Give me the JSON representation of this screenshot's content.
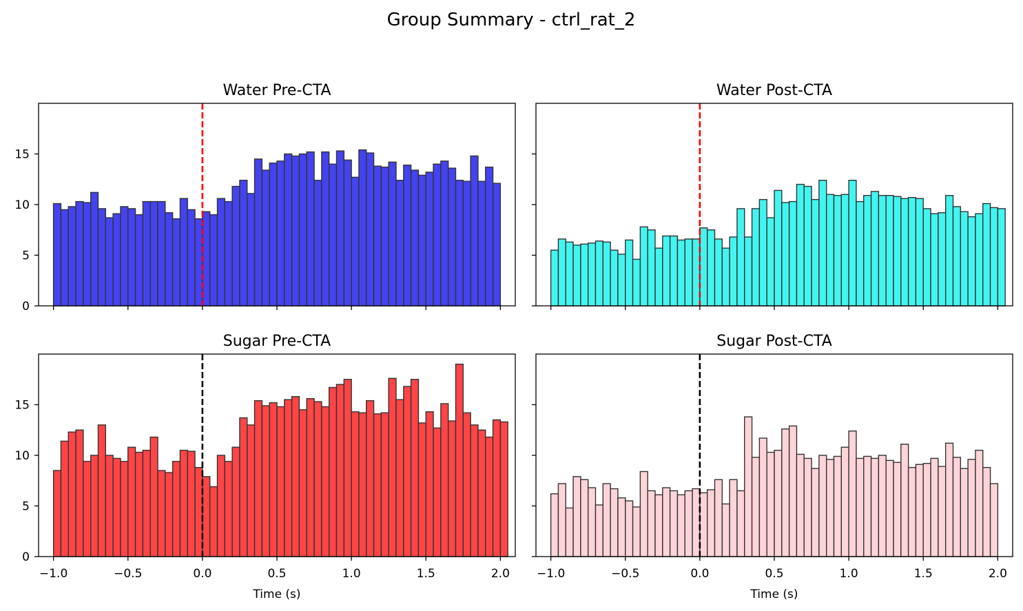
{
  "figure": {
    "title": "Group Summary - ctrl_rat_2"
  },
  "chart_data": [
    {
      "type": "bar",
      "title": "Water Pre-CTA",
      "xlabel": "",
      "ylabel": "",
      "xlim": [
        -1.1,
        2.1
      ],
      "ylim": [
        0,
        20
      ],
      "x_start": -1.0,
      "bin_width": 0.05,
      "xticks": [
        -1.0,
        -0.5,
        0.0,
        0.5,
        1.0,
        1.5,
        2.0
      ],
      "xtick_labels": [],
      "yticks": [
        0,
        5,
        10,
        15
      ],
      "ytick_labels": [
        "0",
        "5",
        "10",
        "15"
      ],
      "color": "#4343f0",
      "vline": {
        "x": 0.0,
        "color": "#ff0000"
      },
      "values": [
        10.1,
        9.5,
        9.8,
        10.3,
        10.2,
        11.2,
        9.6,
        8.7,
        9.1,
        9.8,
        9.6,
        9.0,
        10.3,
        10.3,
        10.3,
        9.2,
        8.6,
        10.6,
        9.5,
        8.6,
        9.3,
        9.0,
        10.6,
        10.3,
        11.8,
        12.4,
        11.1,
        14.5,
        13.4,
        14.1,
        14.3,
        15.0,
        14.8,
        15.0,
        15.2,
        12.4,
        15.2,
        14.0,
        15.3,
        14.4,
        12.7,
        15.4,
        15.1,
        13.8,
        13.7,
        14.2,
        12.4,
        13.9,
        13.4,
        12.9,
        13.2,
        14.0,
        14.3,
        13.6,
        12.4,
        12.3,
        14.8,
        12.3,
        13.7,
        12.1
      ]
    },
    {
      "type": "bar",
      "title": "Water Post-CTA",
      "xlabel": "",
      "ylabel": "",
      "xlim": [
        -1.1,
        2.1
      ],
      "ylim": [
        0,
        20
      ],
      "x_start": -1.0,
      "bin_width": 0.05,
      "xticks": [
        -1.0,
        -0.5,
        0.0,
        0.5,
        1.0,
        1.5,
        2.0
      ],
      "xtick_labels": [],
      "yticks": [
        0,
        5,
        10,
        15
      ],
      "ytick_labels": [],
      "color": "#43f5f0",
      "vline": {
        "x": 0.0,
        "color": "#ff0000"
      },
      "values": [
        5.5,
        6.6,
        6.3,
        6.0,
        6.1,
        6.2,
        6.4,
        6.3,
        5.5,
        5.1,
        6.5,
        4.6,
        7.8,
        7.5,
        5.7,
        6.9,
        6.9,
        6.5,
        6.6,
        6.6,
        7.7,
        7.5,
        6.6,
        5.7,
        6.8,
        9.6,
        6.8,
        9.6,
        10.5,
        8.7,
        11.4,
        10.2,
        10.3,
        12.0,
        11.8,
        10.5,
        12.4,
        11.0,
        10.9,
        11.0,
        12.4,
        10.3,
        10.9,
        11.3,
        10.9,
        10.9,
        10.8,
        10.6,
        10.7,
        10.6,
        9.6,
        9.1,
        9.2,
        10.9,
        9.8,
        9.3,
        8.8,
        9.1,
        10.1,
        9.7,
        9.6
      ]
    },
    {
      "type": "bar",
      "title": "Sugar Pre-CTA",
      "xlabel": "Time (s)",
      "ylabel": "",
      "xlim": [
        -1.1,
        2.1
      ],
      "ylim": [
        0,
        20
      ],
      "x_start": -1.0,
      "bin_width": 0.05,
      "xticks": [
        -1.0,
        -0.5,
        0.0,
        0.5,
        1.0,
        1.5,
        2.0
      ],
      "xtick_labels": [
        "−1.0",
        "−0.5",
        "0.0",
        "0.5",
        "1.0",
        "1.5",
        "2.0"
      ],
      "yticks": [
        0,
        5,
        10,
        15
      ],
      "ytick_labels": [
        "0",
        "5",
        "10",
        "15"
      ],
      "color": "#ff4545",
      "vline": {
        "x": 0.0,
        "color": "#000000"
      },
      "values": [
        8.5,
        11.4,
        12.3,
        12.5,
        9.4,
        10.0,
        13.0,
        10.0,
        9.7,
        9.4,
        10.8,
        10.3,
        10.5,
        11.8,
        8.5,
        8.3,
        9.4,
        10.5,
        10.4,
        8.8,
        7.9,
        6.9,
        10.0,
        9.4,
        10.8,
        13.7,
        13.0,
        15.4,
        14.9,
        15.2,
        14.8,
        15.5,
        15.8,
        14.5,
        15.6,
        15.3,
        14.8,
        16.7,
        17.0,
        17.5,
        14.3,
        14.2,
        15.4,
        14.1,
        14.2,
        17.6,
        15.5,
        16.8,
        17.5,
        13.2,
        14.3,
        12.7,
        15.1,
        13.4,
        19.0,
        14.2,
        13.0,
        12.5,
        11.8,
        13.5,
        13.3
      ]
    },
    {
      "type": "bar",
      "title": "Sugar Post-CTA",
      "xlabel": "Time (s)",
      "ylabel": "",
      "xlim": [
        -1.1,
        2.1
      ],
      "ylim": [
        0,
        20
      ],
      "x_start": -1.0,
      "bin_width": 0.05,
      "xticks": [
        -1.0,
        -0.5,
        0.0,
        0.5,
        1.0,
        1.5,
        2.0
      ],
      "xtick_labels": [
        "−1.0",
        "−0.5",
        "0.0",
        "0.5",
        "1.0",
        "1.5",
        "2.0"
      ],
      "yticks": [
        0,
        5,
        10,
        15
      ],
      "ytick_labels": [],
      "color": "#ffd4d8",
      "vline": {
        "x": 0.0,
        "color": "#000000"
      },
      "values": [
        6.2,
        7.2,
        4.8,
        7.9,
        7.6,
        6.8,
        5.1,
        7.2,
        6.7,
        5.8,
        5.5,
        4.9,
        8.4,
        6.5,
        6.1,
        6.8,
        6.5,
        6.1,
        6.5,
        6.7,
        6.3,
        6.6,
        7.6,
        5.2,
        7.6,
        6.5,
        13.8,
        9.8,
        11.7,
        10.3,
        10.5,
        12.6,
        12.9,
        10.1,
        9.7,
        8.7,
        10.0,
        9.6,
        9.9,
        10.8,
        12.4,
        9.7,
        9.9,
        9.7,
        10.0,
        9.5,
        9.3,
        11.1,
        8.8,
        9.1,
        9.2,
        9.7,
        8.9,
        11.2,
        9.8,
        8.7,
        9.6,
        10.5,
        8.8,
        7.2
      ]
    }
  ]
}
